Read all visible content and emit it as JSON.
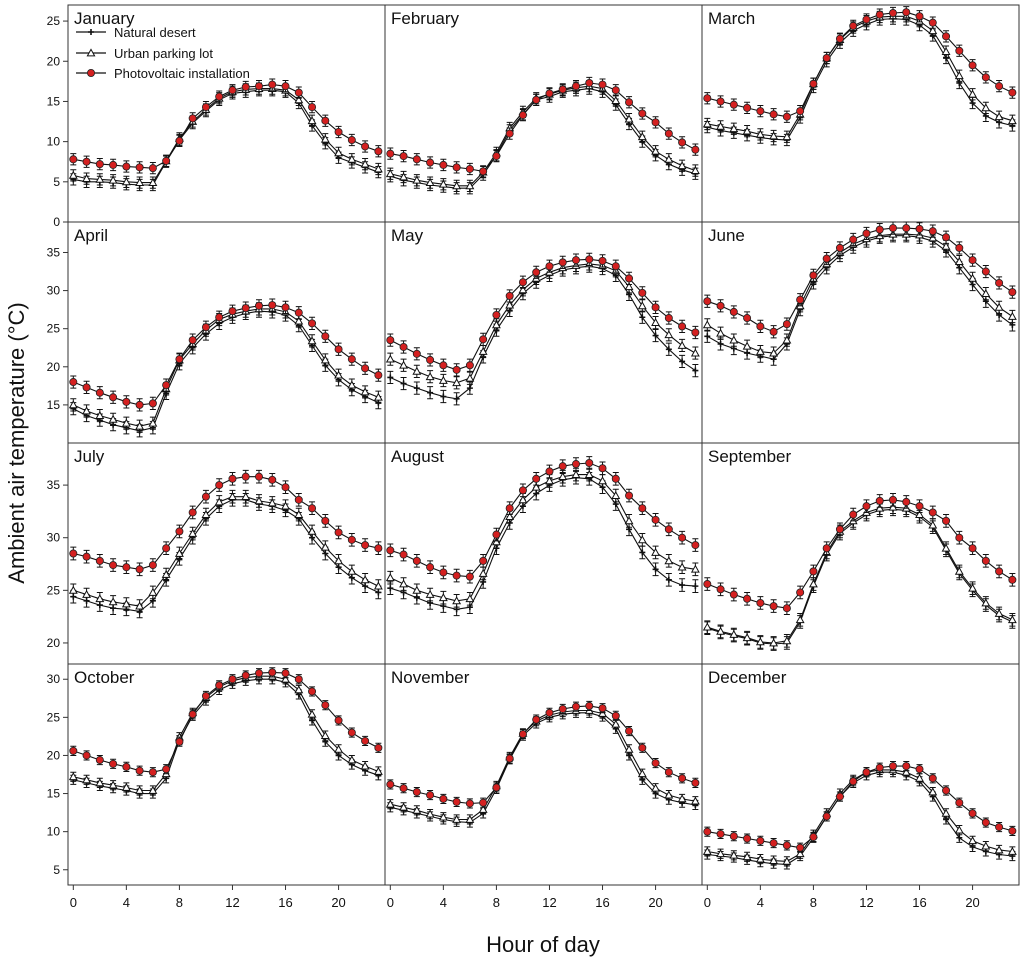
{
  "figure": {
    "xlabel": "Hour of day",
    "ylabel": "Ambient air temperature (°C)"
  },
  "legend": {
    "entries": [
      "Natural desert",
      "Urban parking lot",
      "Photovoltaic installation"
    ]
  },
  "colors": {
    "natural_desert": "#111111",
    "urban_parking_lot": "#ffffff",
    "photovoltaic_installation": "#d42020",
    "axis": "#333333"
  },
  "chart_data": {
    "type": "line",
    "hours": [
      0,
      1,
      2,
      3,
      4,
      5,
      6,
      7,
      8,
      9,
      10,
      11,
      12,
      13,
      14,
      15,
      16,
      17,
      18,
      19,
      20,
      21,
      22,
      23
    ],
    "xticks": [
      0,
      4,
      8,
      12,
      16,
      20
    ],
    "xlim": [
      -0.4,
      23.5
    ],
    "series_names": [
      "Natural desert",
      "Urban parking lot",
      "Photovoltaic installation"
    ],
    "rows": [
      {
        "ylim": [
          0,
          27
        ],
        "yticks": [
          0,
          5,
          10,
          15,
          20,
          25
        ]
      },
      {
        "ylim": [
          10,
          39
        ],
        "yticks": [
          15,
          20,
          25,
          30,
          35
        ]
      },
      {
        "ylim": [
          18,
          39
        ],
        "yticks": [
          20,
          25,
          30,
          35
        ]
      },
      {
        "ylim": [
          3,
          32
        ],
        "yticks": [
          5,
          10,
          15,
          20,
          25,
          30
        ]
      }
    ],
    "panels": [
      {
        "month": "January",
        "row": 0,
        "col": 0,
        "natural_desert": [
          5.3,
          5.0,
          5.0,
          4.9,
          4.7,
          4.6,
          4.6,
          7.5,
          10.2,
          12.3,
          13.8,
          15.2,
          16.0,
          16.2,
          16.4,
          16.4,
          16.2,
          14.8,
          12.0,
          9.8,
          8.0,
          7.4,
          6.8,
          6.2
        ],
        "urban_parking_lot": [
          5.8,
          5.4,
          5.3,
          5.2,
          5.0,
          4.9,
          4.9,
          7.6,
          10.4,
          12.5,
          14.0,
          15.4,
          16.2,
          16.5,
          16.6,
          16.6,
          16.4,
          15.2,
          12.6,
          10.3,
          8.6,
          7.8,
          7.2,
          6.6
        ],
        "photovoltaic_installation": [
          7.8,
          7.5,
          7.2,
          7.1,
          6.9,
          6.8,
          6.7,
          7.6,
          10.1,
          12.9,
          14.3,
          15.6,
          16.4,
          16.8,
          16.9,
          17.1,
          16.9,
          16.1,
          14.3,
          12.6,
          11.2,
          10.2,
          9.4,
          8.8
        ]
      },
      {
        "month": "February",
        "row": 0,
        "col": 1,
        "natural_desert": [
          5.7,
          5.2,
          4.9,
          4.6,
          4.4,
          4.2,
          4.2,
          5.9,
          8.3,
          11.4,
          13.4,
          15.2,
          15.6,
          16.2,
          16.4,
          16.6,
          16.2,
          14.6,
          12.2,
          10.0,
          8.3,
          7.2,
          6.5,
          6.0
        ],
        "urban_parking_lot": [
          6.0,
          5.6,
          5.2,
          4.9,
          4.7,
          4.5,
          4.5,
          6.2,
          8.6,
          11.7,
          13.7,
          15.4,
          15.9,
          16.4,
          16.7,
          16.9,
          16.6,
          15.1,
          12.8,
          10.6,
          8.8,
          7.8,
          7.0,
          6.4
        ],
        "photovoltaic_installation": [
          8.5,
          8.2,
          7.8,
          7.4,
          7.1,
          6.8,
          6.6,
          6.3,
          8.2,
          11.0,
          13.3,
          15.2,
          16.0,
          16.5,
          16.9,
          17.3,
          17.1,
          16.4,
          14.9,
          13.5,
          12.4,
          11.0,
          9.9,
          9.0
        ]
      },
      {
        "month": "March",
        "row": 0,
        "col": 2,
        "natural_desert": [
          11.8,
          11.4,
          11.1,
          10.8,
          10.5,
          10.3,
          10.2,
          13.0,
          16.8,
          20.0,
          22.3,
          23.8,
          24.6,
          25.2,
          25.3,
          25.2,
          24.5,
          23.2,
          20.4,
          17.3,
          14.8,
          13.2,
          12.4,
          12.0
        ],
        "urban_parking_lot": [
          12.2,
          11.9,
          11.6,
          11.3,
          10.9,
          10.7,
          10.6,
          13.4,
          17.2,
          20.4,
          22.7,
          24.2,
          25.0,
          25.5,
          25.6,
          25.6,
          25.0,
          23.8,
          21.2,
          18.2,
          15.9,
          14.2,
          13.1,
          12.6
        ],
        "photovoltaic_installation": [
          15.4,
          15.0,
          14.6,
          14.2,
          13.8,
          13.4,
          13.1,
          13.8,
          17.2,
          20.4,
          22.8,
          24.4,
          25.2,
          25.8,
          26.0,
          26.1,
          25.6,
          24.8,
          23.1,
          21.3,
          19.5,
          18.0,
          16.9,
          16.1
        ]
      },
      {
        "month": "April",
        "row": 1,
        "col": 0,
        "natural_desert": [
          14.5,
          13.6,
          13.0,
          12.4,
          12.0,
          11.6,
          12.0,
          16.5,
          20.4,
          22.5,
          24.3,
          25.7,
          26.5,
          27.0,
          27.3,
          27.2,
          26.8,
          25.4,
          22.8,
          20.2,
          18.3,
          17.0,
          16.1,
          15.3
        ],
        "urban_parking_lot": [
          15.0,
          14.2,
          13.6,
          13.1,
          12.6,
          12.2,
          12.6,
          17.1,
          20.9,
          23.0,
          24.8,
          26.2,
          26.9,
          27.3,
          27.6,
          27.6,
          27.2,
          26.0,
          23.4,
          20.9,
          18.9,
          17.6,
          16.7,
          16.0
        ],
        "photovoltaic_installation": [
          18.0,
          17.3,
          16.6,
          16.0,
          15.4,
          15.0,
          15.2,
          17.6,
          21.0,
          23.5,
          25.2,
          26.5,
          27.3,
          27.7,
          28.0,
          28.1,
          27.8,
          27.1,
          25.7,
          24.0,
          22.3,
          21.0,
          19.8,
          18.9
        ]
      },
      {
        "month": "May",
        "row": 1,
        "col": 1,
        "natural_desert": [
          18.6,
          17.8,
          17.2,
          16.6,
          16.1,
          15.8,
          17.2,
          21.3,
          24.8,
          27.4,
          29.6,
          31.1,
          32.0,
          32.7,
          33.0,
          33.2,
          32.9,
          32.0,
          29.5,
          26.5,
          24.1,
          22.3,
          20.7,
          19.5
        ],
        "urban_parking_lot": [
          21.0,
          20.2,
          19.4,
          18.7,
          18.2,
          17.9,
          18.5,
          22.0,
          25.5,
          28.1,
          30.1,
          31.6,
          32.4,
          33.0,
          33.3,
          33.5,
          33.3,
          32.6,
          30.5,
          28.0,
          25.8,
          24.2,
          22.8,
          21.8
        ],
        "photovoltaic_installation": [
          23.5,
          22.6,
          21.7,
          20.9,
          20.2,
          19.6,
          20.2,
          23.6,
          26.8,
          29.3,
          31.1,
          32.4,
          33.2,
          33.7,
          34.0,
          34.1,
          33.9,
          33.2,
          31.6,
          29.7,
          27.8,
          26.4,
          25.3,
          24.5
        ]
      },
      {
        "month": "June",
        "row": 1,
        "col": 2,
        "natural_desert": [
          24.0,
          23.0,
          22.4,
          21.8,
          21.4,
          21.0,
          23.0,
          27.5,
          31.0,
          33.0,
          34.6,
          35.7,
          36.5,
          37.0,
          37.2,
          37.2,
          37.0,
          36.5,
          35.2,
          33.0,
          30.8,
          28.6,
          26.8,
          25.5
        ],
        "urban_parking_lot": [
          25.5,
          24.4,
          23.5,
          22.7,
          22.0,
          21.8,
          23.5,
          28.0,
          31.6,
          33.5,
          35.0,
          36.1,
          36.8,
          37.2,
          37.4,
          37.4,
          37.3,
          36.9,
          35.8,
          33.8,
          31.6,
          29.6,
          27.8,
          26.6
        ],
        "photovoltaic_installation": [
          28.6,
          28.0,
          27.2,
          26.4,
          25.3,
          24.6,
          25.6,
          28.8,
          32.0,
          34.2,
          35.6,
          36.7,
          37.5,
          38.0,
          38.2,
          38.2,
          38.1,
          37.8,
          37.0,
          35.6,
          34.0,
          32.5,
          31.0,
          29.8
        ]
      },
      {
        "month": "July",
        "row": 2,
        "col": 0,
        "natural_desert": [
          24.4,
          24.0,
          23.6,
          23.3,
          23.2,
          23.0,
          24.0,
          26.0,
          28.0,
          30.0,
          31.8,
          33.0,
          33.6,
          33.6,
          33.2,
          33.0,
          32.6,
          31.8,
          30.0,
          28.5,
          27.2,
          26.2,
          25.4,
          24.8
        ],
        "urban_parking_lot": [
          25.0,
          24.6,
          24.2,
          23.9,
          23.7,
          23.5,
          24.8,
          26.5,
          28.5,
          30.4,
          32.2,
          33.4,
          33.9,
          33.9,
          33.5,
          33.3,
          33.0,
          32.2,
          30.6,
          29.1,
          27.8,
          26.8,
          26.0,
          25.4
        ],
        "photovoltaic_installation": [
          28.5,
          28.2,
          27.8,
          27.4,
          27.2,
          27.0,
          27.4,
          29.0,
          30.6,
          32.4,
          33.9,
          35.0,
          35.6,
          35.8,
          35.8,
          35.5,
          34.8,
          33.6,
          32.8,
          31.6,
          30.5,
          29.8,
          29.3,
          29.0
        ]
      },
      {
        "month": "August",
        "row": 2,
        "col": 1,
        "natural_desert": [
          25.2,
          24.8,
          24.3,
          23.8,
          23.5,
          23.2,
          23.4,
          25.8,
          29.0,
          31.4,
          33.0,
          34.2,
          35.0,
          35.5,
          35.7,
          35.6,
          34.8,
          33.2,
          30.8,
          28.6,
          27.0,
          26.0,
          25.5,
          25.4
        ],
        "urban_parking_lot": [
          26.2,
          25.6,
          25.0,
          24.6,
          24.3,
          24.0,
          24.2,
          26.6,
          29.6,
          32.0,
          33.6,
          34.8,
          35.4,
          35.8,
          36.0,
          36.0,
          35.4,
          34.0,
          31.6,
          29.8,
          28.6,
          27.8,
          27.2,
          27.0
        ],
        "photovoltaic_installation": [
          28.8,
          28.4,
          27.8,
          27.2,
          26.7,
          26.4,
          26.3,
          27.8,
          30.3,
          32.8,
          34.5,
          35.6,
          36.3,
          36.8,
          37.0,
          37.1,
          36.6,
          35.6,
          34.0,
          32.8,
          31.7,
          30.8,
          30.0,
          29.3
        ]
      },
      {
        "month": "September",
        "row": 2,
        "col": 2,
        "natural_desert": [
          21.4,
          21.0,
          20.7,
          20.4,
          20.0,
          19.9,
          20.0,
          22.0,
          25.4,
          28.4,
          30.4,
          31.4,
          32.2,
          32.6,
          32.7,
          32.6,
          32.0,
          31.0,
          28.8,
          26.6,
          25.0,
          23.6,
          22.6,
          22.0
        ],
        "urban_parking_lot": [
          21.5,
          21.1,
          20.8,
          20.5,
          20.1,
          20.0,
          20.2,
          22.2,
          25.6,
          28.6,
          30.6,
          31.6,
          32.4,
          32.8,
          32.9,
          32.8,
          32.2,
          31.2,
          29.0,
          26.8,
          25.2,
          23.8,
          22.8,
          22.2
        ],
        "photovoltaic_installation": [
          25.6,
          25.1,
          24.6,
          24.2,
          23.8,
          23.5,
          23.3,
          24.8,
          26.8,
          29.0,
          30.8,
          32.2,
          33.0,
          33.5,
          33.6,
          33.4,
          33.0,
          32.4,
          31.6,
          30.0,
          29.0,
          27.8,
          26.8,
          26.0
        ]
      },
      {
        "month": "October",
        "row": 3,
        "col": 0,
        "natural_desert": [
          16.8,
          16.4,
          16.0,
          15.7,
          15.4,
          15.0,
          15.0,
          17.0,
          22.0,
          25.2,
          27.2,
          28.6,
          29.4,
          29.8,
          30.0,
          30.0,
          29.6,
          28.0,
          24.6,
          21.8,
          20.0,
          18.8,
          18.0,
          17.4
        ],
        "urban_parking_lot": [
          17.2,
          16.8,
          16.4,
          16.1,
          15.8,
          15.4,
          15.4,
          17.6,
          22.4,
          25.6,
          27.6,
          29.0,
          29.8,
          30.2,
          30.4,
          30.4,
          30.0,
          28.6,
          25.4,
          22.6,
          20.8,
          19.4,
          18.6,
          17.9
        ],
        "photovoltaic_installation": [
          20.6,
          20.0,
          19.4,
          18.9,
          18.5,
          18.0,
          17.8,
          18.2,
          21.8,
          25.4,
          27.8,
          29.2,
          30.0,
          30.5,
          30.8,
          30.9,
          30.8,
          30.0,
          28.4,
          26.6,
          24.6,
          23.0,
          21.9,
          21.0
        ]
      },
      {
        "month": "November",
        "row": 3,
        "col": 1,
        "natural_desert": [
          13.2,
          12.8,
          12.4,
          12.0,
          11.6,
          11.3,
          11.2,
          12.4,
          15.6,
          19.5,
          22.6,
          24.2,
          25.0,
          25.4,
          25.6,
          25.6,
          25.1,
          23.5,
          20.0,
          16.8,
          15.0,
          14.2,
          13.8,
          13.5
        ],
        "urban_parking_lot": [
          13.6,
          13.2,
          12.8,
          12.3,
          11.9,
          11.6,
          11.6,
          12.9,
          16.0,
          19.8,
          22.9,
          24.5,
          25.3,
          25.7,
          25.9,
          25.9,
          25.5,
          24.1,
          20.8,
          17.6,
          15.7,
          14.8,
          14.3,
          14.0
        ],
        "photovoltaic_installation": [
          16.2,
          15.7,
          15.2,
          14.8,
          14.3,
          13.9,
          13.7,
          13.8,
          15.8,
          19.6,
          22.8,
          24.7,
          25.6,
          26.1,
          26.4,
          26.5,
          26.2,
          25.2,
          23.2,
          21.0,
          19.0,
          17.8,
          17.0,
          16.4
        ]
      },
      {
        "month": "December",
        "row": 3,
        "col": 2,
        "natural_desert": [
          7.0,
          6.8,
          6.6,
          6.3,
          6.0,
          5.8,
          5.7,
          6.8,
          9.2,
          12.0,
          14.6,
          16.4,
          17.4,
          17.8,
          17.8,
          17.4,
          16.6,
          14.6,
          11.6,
          9.2,
          8.0,
          7.4,
          7.0,
          6.8
        ],
        "urban_parking_lot": [
          7.4,
          7.1,
          6.9,
          6.7,
          6.4,
          6.2,
          6.1,
          7.1,
          9.6,
          12.4,
          15.0,
          16.8,
          17.8,
          18.1,
          18.1,
          17.8,
          17.0,
          15.2,
          12.4,
          10.2,
          8.8,
          8.1,
          7.6,
          7.4
        ],
        "photovoltaic_installation": [
          10.0,
          9.7,
          9.4,
          9.1,
          8.8,
          8.5,
          8.2,
          7.9,
          9.3,
          12.0,
          14.6,
          16.6,
          17.8,
          18.4,
          18.6,
          18.6,
          18.2,
          17.0,
          15.4,
          13.8,
          12.4,
          11.2,
          10.6,
          10.1
        ]
      }
    ]
  }
}
